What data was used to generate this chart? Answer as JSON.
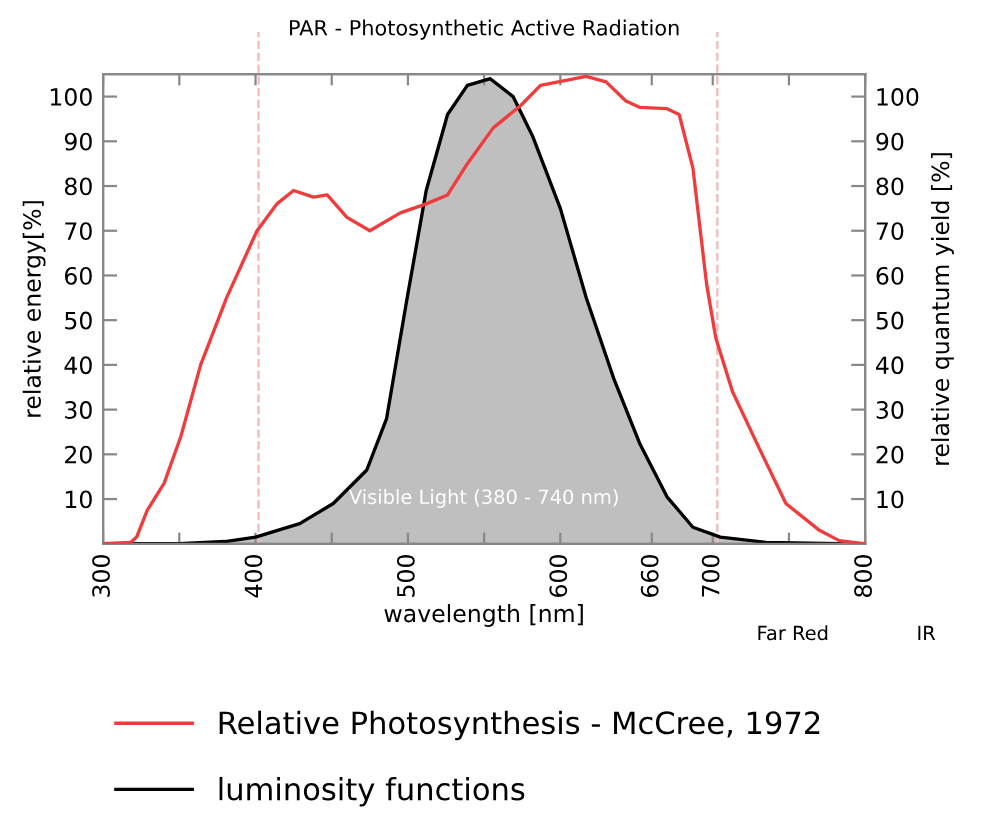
{
  "chart_data": {
    "type": "line",
    "title": "PAR - Photosynthetic Active Radiation",
    "xlabel": "wavelength [nm]",
    "ylabel": "relative energy[%]",
    "y2label": "relative quantum yield [%]",
    "xlim": [
      300,
      800
    ],
    "xticks": [
      300,
      {
        "value": 350,
        "label": null
      },
      400,
      {
        "value": 450,
        "label": null
      },
      500,
      {
        "value": 550,
        "label": null
      },
      600,
      660,
      700,
      {
        "value": 750,
        "label": null
      },
      800
    ],
    "ylim": [
      0,
      105
    ],
    "yticks": [
      10,
      20,
      30,
      40,
      50,
      60,
      70,
      80,
      90,
      100
    ],
    "y2lim": [
      0,
      105
    ],
    "y2ticks": [
      10,
      20,
      30,
      40,
      50,
      60,
      70,
      80,
      90,
      100
    ],
    "series": [
      {
        "name": "Relative Photosynthesis - McCree, 1972",
        "color": "#f03c3c",
        "axis": "y2",
        "x": [
          300,
          318,
          322,
          329,
          340,
          351,
          364,
          381,
          401,
          414,
          425,
          438,
          447,
          460,
          475,
          495,
          512,
          526,
          539,
          556,
          574,
          587,
          617,
          630,
          643,
          652,
          670,
          678,
          687,
          696,
          702,
          713,
          731,
          748,
          770,
          783,
          800
        ],
        "values": [
          0,
          0.3,
          1.5,
          7.5,
          13.5,
          24,
          40,
          55,
          70,
          76,
          79,
          77.5,
          78,
          73,
          70,
          74,
          76,
          78,
          85,
          93,
          98,
          102.5,
          104.5,
          103.3,
          99,
          97.6,
          97.3,
          96,
          84,
          58,
          46,
          34,
          21,
          9,
          3,
          0.7,
          0
        ]
      },
      {
        "name": "luminosity functions",
        "type": "area",
        "color": "#000000",
        "x": [
          300,
          350,
          380,
          400,
          429,
          451,
          473,
          486,
          499,
          512,
          526,
          539,
          554,
          569,
          582,
          600,
          617,
          635,
          652,
          670,
          687,
          705,
          735,
          783,
          800
        ],
        "values": [
          0,
          0,
          0.5,
          1.5,
          4.5,
          9,
          16.5,
          28,
          54,
          79,
          96,
          102.5,
          104,
          100,
          91,
          75,
          55,
          37,
          22.5,
          10.5,
          3.7,
          1.5,
          0.3,
          0,
          0
        ]
      }
    ],
    "ref_lines": [
      {
        "axis": "x",
        "value": 402,
        "color": "#f4b8b8",
        "line_style": "dashed"
      },
      {
        "axis": "x",
        "value": 703,
        "color": "#f4b8b8",
        "line_style": "dashed"
      }
    ],
    "annotations": [
      "Visible Light (380 - 740 nm)",
      "Far Red",
      "IR"
    ],
    "legend": "bottom",
    "grid": false,
    "marker": "none",
    "line_style": "solid"
  }
}
